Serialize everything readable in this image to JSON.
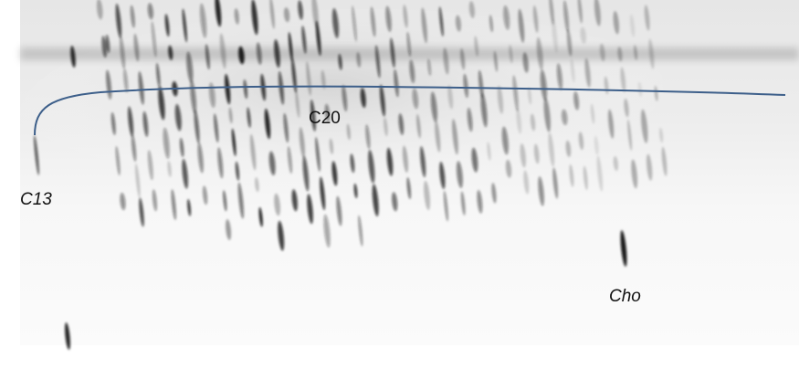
{
  "labels": [
    "C13",
    "C20",
    "Cho"
  ]
}
